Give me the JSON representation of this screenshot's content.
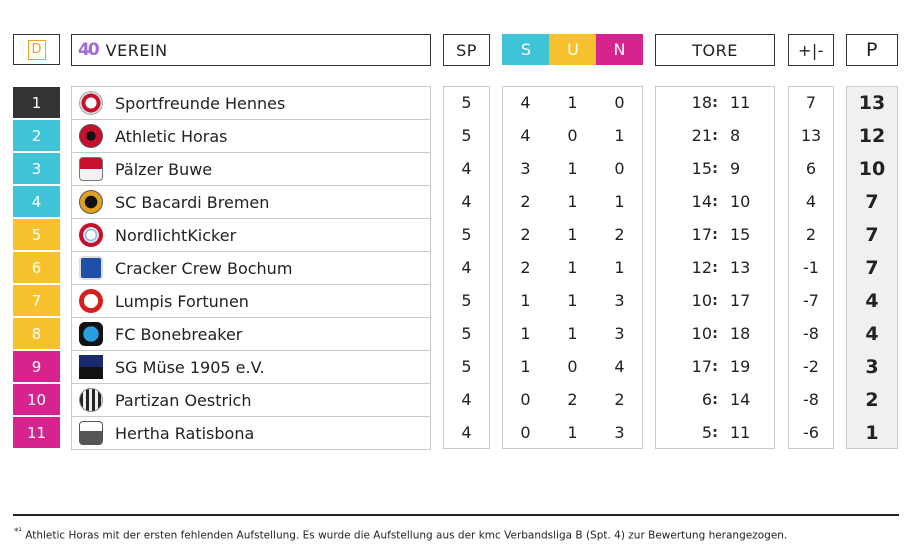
{
  "header": {
    "d_label": "D",
    "verein_label": "VEREIN",
    "logo_text": "40",
    "sp_label": "SP",
    "s_label": "S",
    "u_label": "U",
    "n_label": "N",
    "tore_label": "TORE",
    "diff_label": "+|-",
    "p_label": "P"
  },
  "colors": {
    "rank1": "#333333",
    "teal": "#3ec4d6",
    "yellow": "#f7c12e",
    "magenta": "#d6238e",
    "s_header": "#3ec4d6",
    "u_header": "#f7c12e",
    "n_header": "#d6238e"
  },
  "rows": [
    {
      "rank": "1",
      "team": "Sportfreunde Hennes",
      "sp": "5",
      "s": "4",
      "u": "1",
      "n": "0",
      "gf": "18",
      "ga": "11",
      "diff": "7",
      "pts": "13",
      "crest": "ball-crest-icon"
    },
    {
      "rank": "2",
      "team": "Athletic Horas",
      "sp": "5",
      "s": "4",
      "u": "0",
      "n": "1",
      "gf": "21",
      "ga": "8",
      "diff": "13",
      "pts": "12",
      "crest": "horas-crest-icon"
    },
    {
      "rank": "3",
      "team": "Pälzer Buwe",
      "sp": "4",
      "s": "3",
      "u": "1",
      "n": "0",
      "gf": "15",
      "ga": "9",
      "diff": "6",
      "pts": "10",
      "crest": "pfalz-crest-icon"
    },
    {
      "rank": "4",
      "team": "SC Bacardi Bremen",
      "sp": "4",
      "s": "2",
      "u": "1",
      "n": "1",
      "gf": "14",
      "ga": "10",
      "diff": "4",
      "pts": "7",
      "crest": "bat-crest-icon"
    },
    {
      "rank": "5",
      "team": "NordlichtKicker",
      "sp": "5",
      "s": "2",
      "u": "1",
      "n": "2",
      "gf": "17",
      "ga": "15",
      "diff": "2",
      "pts": "7",
      "crest": "bayern-crest-icon"
    },
    {
      "rank": "6",
      "team": "Cracker Crew Bochum",
      "sp": "4",
      "s": "2",
      "u": "1",
      "n": "1",
      "gf": "12",
      "ga": "13",
      "diff": "-1",
      "pts": "7",
      "crest": "bochum-crest-icon"
    },
    {
      "rank": "7",
      "team": "Lumpis Fortunen",
      "sp": "5",
      "s": "1",
      "u": "1",
      "n": "3",
      "gf": "10",
      "ga": "17",
      "diff": "-7",
      "pts": "4",
      "crest": "fortuna-crest-icon"
    },
    {
      "rank": "8",
      "team": "FC Bonebreaker",
      "sp": "5",
      "s": "1",
      "u": "1",
      "n": "3",
      "gf": "10",
      "ga": "18",
      "diff": "-8",
      "pts": "4",
      "crest": "bonebreaker-crest-icon"
    },
    {
      "rank": "9",
      "team": "SG Müse 1905 e.V.",
      "sp": "5",
      "s": "1",
      "u": "0",
      "n": "4",
      "gf": "17",
      "ga": "19",
      "diff": "-2",
      "pts": "3",
      "crest": "muese-crest-icon"
    },
    {
      "rank": "10",
      "team": "Partizan Oestrich",
      "sp": "4",
      "s": "0",
      "u": "2",
      "n": "2",
      "gf": "6",
      "ga": "14",
      "diff": "-8",
      "pts": "2",
      "crest": "partizan-crest-icon"
    },
    {
      "rank": "11",
      "team": "Hertha Ratisbona",
      "sp": "4",
      "s": "0",
      "u": "1",
      "n": "3",
      "gf": "5",
      "ga": "11",
      "diff": "-6",
      "pts": "1",
      "crest": "hertha-crest-icon"
    }
  ],
  "tore_separator": ":",
  "footnote": {
    "marker": "*¹",
    "text": "Athletic Horas mit der ersten fehlenden Aufstellung. Es wurde die Aufstellung aus der kmc Verbandsliga B (Spt. 4) zur Bewertung herangezogen."
  }
}
